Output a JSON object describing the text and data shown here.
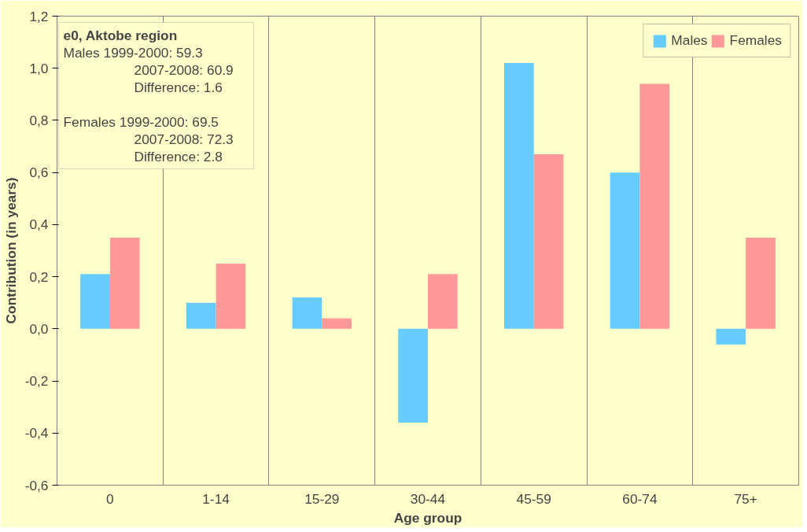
{
  "chart_data": {
    "type": "bar",
    "xlabel": "Age group",
    "ylabel": "Contribution (in years)",
    "categories": [
      "0",
      "1-14",
      "15-29",
      "30-44",
      "45-59",
      "60-74",
      "75+"
    ],
    "series": [
      {
        "name": "Males",
        "color": "#66ccff",
        "values": [
          0.21,
          0.1,
          0.12,
          -0.36,
          1.02,
          0.6,
          -0.06
        ]
      },
      {
        "name": "Females",
        "color": "#ff9999",
        "values": [
          0.35,
          0.25,
          0.04,
          0.21,
          0.67,
          0.94,
          0.35
        ]
      }
    ],
    "ylim": [
      -0.6,
      1.2
    ],
    "yticks": [
      {
        "value": -0.6,
        "label": "-0,6"
      },
      {
        "value": -0.4,
        "label": "-0,4"
      },
      {
        "value": -0.2,
        "label": "-0,2"
      },
      {
        "value": 0,
        "label": "0,0"
      },
      {
        "value": 0.2,
        "label": "0,2"
      },
      {
        "value": 0.4,
        "label": "0,4"
      },
      {
        "value": 0.6,
        "label": "0,6"
      },
      {
        "value": 0.8,
        "label": "0,8"
      },
      {
        "value": 1.0,
        "label": "1,0"
      },
      {
        "value": 1.2,
        "label": "1,2"
      }
    ],
    "annotations": [
      "e0, Aktobe region",
      "Males      1999-2000: 59.3",
      "2007-2008: 60.9",
      "Difference:   1.6",
      "Females  1999-2000: 69.5",
      "2007-2008: 72.3",
      "Difference:   2.8"
    ],
    "grid": "x",
    "legend": "top right"
  }
}
